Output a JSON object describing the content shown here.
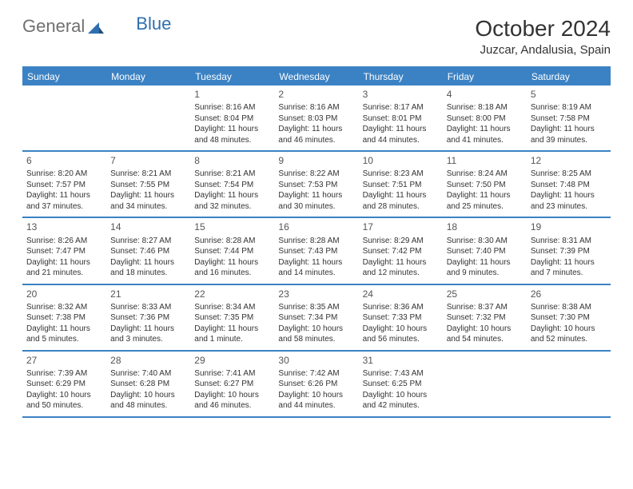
{
  "logo": {
    "text1": "General",
    "text2": "Blue"
  },
  "title": "October 2024",
  "location": "Juzcar, Andalusia, Spain",
  "colors": {
    "header_bg": "#3b82c4",
    "header_text": "#ffffff",
    "text": "#333333",
    "logo_gray": "#707070",
    "logo_blue": "#2f6fb0"
  },
  "day_headers": [
    "Sunday",
    "Monday",
    "Tuesday",
    "Wednesday",
    "Thursday",
    "Friday",
    "Saturday"
  ],
  "weeks": [
    [
      null,
      null,
      {
        "n": "1",
        "sunrise": "8:16 AM",
        "sunset": "8:04 PM",
        "daylight": "11 hours and 48 minutes."
      },
      {
        "n": "2",
        "sunrise": "8:16 AM",
        "sunset": "8:03 PM",
        "daylight": "11 hours and 46 minutes."
      },
      {
        "n": "3",
        "sunrise": "8:17 AM",
        "sunset": "8:01 PM",
        "daylight": "11 hours and 44 minutes."
      },
      {
        "n": "4",
        "sunrise": "8:18 AM",
        "sunset": "8:00 PM",
        "daylight": "11 hours and 41 minutes."
      },
      {
        "n": "5",
        "sunrise": "8:19 AM",
        "sunset": "7:58 PM",
        "daylight": "11 hours and 39 minutes."
      }
    ],
    [
      {
        "n": "6",
        "sunrise": "8:20 AM",
        "sunset": "7:57 PM",
        "daylight": "11 hours and 37 minutes."
      },
      {
        "n": "7",
        "sunrise": "8:21 AM",
        "sunset": "7:55 PM",
        "daylight": "11 hours and 34 minutes."
      },
      {
        "n": "8",
        "sunrise": "8:21 AM",
        "sunset": "7:54 PM",
        "daylight": "11 hours and 32 minutes."
      },
      {
        "n": "9",
        "sunrise": "8:22 AM",
        "sunset": "7:53 PM",
        "daylight": "11 hours and 30 minutes."
      },
      {
        "n": "10",
        "sunrise": "8:23 AM",
        "sunset": "7:51 PM",
        "daylight": "11 hours and 28 minutes."
      },
      {
        "n": "11",
        "sunrise": "8:24 AM",
        "sunset": "7:50 PM",
        "daylight": "11 hours and 25 minutes."
      },
      {
        "n": "12",
        "sunrise": "8:25 AM",
        "sunset": "7:48 PM",
        "daylight": "11 hours and 23 minutes."
      }
    ],
    [
      {
        "n": "13",
        "sunrise": "8:26 AM",
        "sunset": "7:47 PM",
        "daylight": "11 hours and 21 minutes."
      },
      {
        "n": "14",
        "sunrise": "8:27 AM",
        "sunset": "7:46 PM",
        "daylight": "11 hours and 18 minutes."
      },
      {
        "n": "15",
        "sunrise": "8:28 AM",
        "sunset": "7:44 PM",
        "daylight": "11 hours and 16 minutes."
      },
      {
        "n": "16",
        "sunrise": "8:28 AM",
        "sunset": "7:43 PM",
        "daylight": "11 hours and 14 minutes."
      },
      {
        "n": "17",
        "sunrise": "8:29 AM",
        "sunset": "7:42 PM",
        "daylight": "11 hours and 12 minutes."
      },
      {
        "n": "18",
        "sunrise": "8:30 AM",
        "sunset": "7:40 PM",
        "daylight": "11 hours and 9 minutes."
      },
      {
        "n": "19",
        "sunrise": "8:31 AM",
        "sunset": "7:39 PM",
        "daylight": "11 hours and 7 minutes."
      }
    ],
    [
      {
        "n": "20",
        "sunrise": "8:32 AM",
        "sunset": "7:38 PM",
        "daylight": "11 hours and 5 minutes."
      },
      {
        "n": "21",
        "sunrise": "8:33 AM",
        "sunset": "7:36 PM",
        "daylight": "11 hours and 3 minutes."
      },
      {
        "n": "22",
        "sunrise": "8:34 AM",
        "sunset": "7:35 PM",
        "daylight": "11 hours and 1 minute."
      },
      {
        "n": "23",
        "sunrise": "8:35 AM",
        "sunset": "7:34 PM",
        "daylight": "10 hours and 58 minutes."
      },
      {
        "n": "24",
        "sunrise": "8:36 AM",
        "sunset": "7:33 PM",
        "daylight": "10 hours and 56 minutes."
      },
      {
        "n": "25",
        "sunrise": "8:37 AM",
        "sunset": "7:32 PM",
        "daylight": "10 hours and 54 minutes."
      },
      {
        "n": "26",
        "sunrise": "8:38 AM",
        "sunset": "7:30 PM",
        "daylight": "10 hours and 52 minutes."
      }
    ],
    [
      {
        "n": "27",
        "sunrise": "7:39 AM",
        "sunset": "6:29 PM",
        "daylight": "10 hours and 50 minutes."
      },
      {
        "n": "28",
        "sunrise": "7:40 AM",
        "sunset": "6:28 PM",
        "daylight": "10 hours and 48 minutes."
      },
      {
        "n": "29",
        "sunrise": "7:41 AM",
        "sunset": "6:27 PM",
        "daylight": "10 hours and 46 minutes."
      },
      {
        "n": "30",
        "sunrise": "7:42 AM",
        "sunset": "6:26 PM",
        "daylight": "10 hours and 44 minutes."
      },
      {
        "n": "31",
        "sunrise": "7:43 AM",
        "sunset": "6:25 PM",
        "daylight": "10 hours and 42 minutes."
      },
      null,
      null
    ]
  ]
}
